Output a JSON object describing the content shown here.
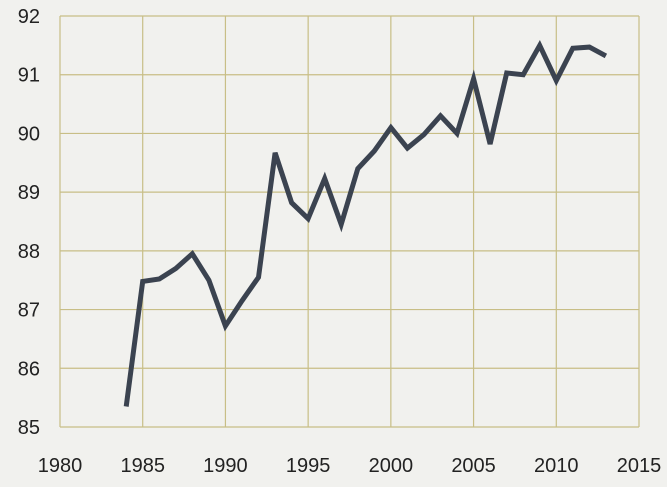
{
  "chart_data": {
    "type": "line",
    "title": "",
    "xlabel": "",
    "ylabel": "",
    "xlim": [
      1980,
      2015
    ],
    "ylim": [
      85,
      92
    ],
    "grid": true,
    "x_ticks": [
      "1980",
      "1985",
      "1990",
      "1995",
      "2000",
      "2005",
      "2010",
      "2015"
    ],
    "y_ticks": [
      "85",
      "86",
      "87",
      "88",
      "89",
      "90",
      "91",
      "92"
    ],
    "colors": {
      "line": "#3b4350",
      "grid": "#c8be86",
      "background": "#f1f1ee"
    },
    "series": [
      {
        "x": [
          1984,
          1985,
          1986,
          1987,
          1988,
          1989,
          1990,
          1991,
          1992,
          1993,
          1994,
          1995,
          1996,
          1997,
          1998,
          1999,
          2000,
          2001,
          2002,
          2003,
          2004,
          2005,
          2006,
          2007,
          2008,
          2009,
          2010,
          2011,
          2012,
          2013
        ],
        "values": [
          85.35,
          87.48,
          87.52,
          87.7,
          87.95,
          87.5,
          86.72,
          87.15,
          87.55,
          89.67,
          88.82,
          88.55,
          89.23,
          88.45,
          89.4,
          89.7,
          90.1,
          89.75,
          89.98,
          90.3,
          90.0,
          90.93,
          89.82,
          91.03,
          91.0,
          91.5,
          90.9,
          91.45,
          91.47,
          91.32
        ]
      }
    ]
  }
}
